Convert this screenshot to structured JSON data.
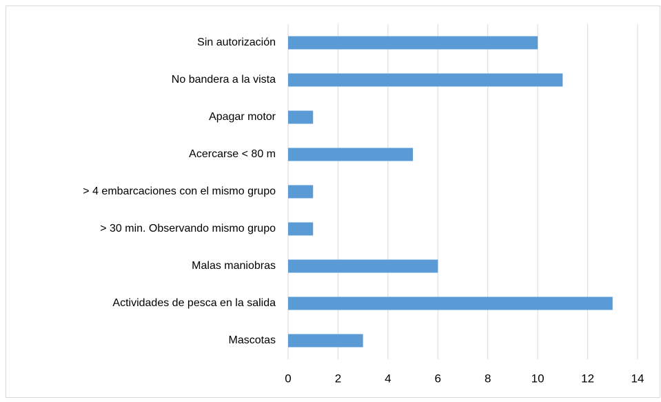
{
  "chart_data": {
    "type": "bar",
    "orientation": "horizontal",
    "categories": [
      "Sin autorización",
      "No bandera a la vista",
      "Apagar motor",
      "Acercarse < 80 m",
      "> 4 embarcaciones con el mismo grupo",
      "> 30 min. Observando mismo grupo",
      "Malas maniobras",
      "Actividades de pesca en la salida",
      "Mascotas"
    ],
    "values": [
      10,
      11,
      1,
      5,
      1,
      1,
      6,
      13,
      3
    ],
    "color": "#5b9bd5",
    "xlim": [
      0,
      14
    ],
    "xticks": [
      0,
      2,
      4,
      6,
      8,
      10,
      12,
      14
    ],
    "grid": true
  }
}
